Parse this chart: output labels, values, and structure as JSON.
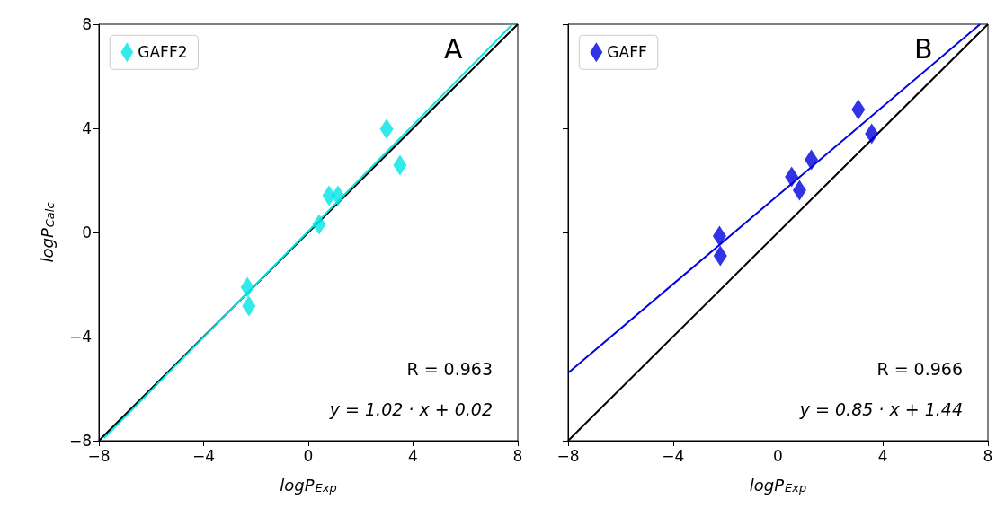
{
  "chart_data": [
    {
      "type": "scatter",
      "xlabel": "logP$_{Exp}$",
      "ylabel": "logP$_{Calc}$",
      "xlim": [
        -8,
        8
      ],
      "ylim": [
        -8,
        8
      ],
      "xticks": [
        -8,
        -4,
        0,
        4,
        8
      ],
      "yticks": [
        -8,
        -4,
        0,
        4,
        8
      ],
      "grid": false,
      "legend": "top left",
      "marker": "diamond",
      "annotations": [
        "A",
        "R = 0.963",
        "y = 1.02 · x + 0.02"
      ],
      "series": [
        {
          "type": "line",
          "color": "#000000",
          "x": [
            -8,
            8
          ],
          "values": [
            -8,
            8
          ],
          "marker": "none"
        },
        {
          "type": "line",
          "color": "#00e5e5",
          "x": [
            -7.8,
            7.8
          ],
          "values": [
            -7.9,
            8.0
          ],
          "marker": "none"
        },
        {
          "name": "GAFF2",
          "color": "#00e5e5",
          "x": [
            -2.33,
            -2.27,
            0.41,
            0.79,
            1.13,
            2.99,
            3.5
          ],
          "values": [
            -2.1,
            -2.83,
            0.31,
            1.41,
            1.41,
            3.97,
            2.59
          ]
        }
      ]
    },
    {
      "type": "scatter",
      "xlabel": "logP$_{Exp}$",
      "xlim": [
        -8,
        8
      ],
      "ylim": [
        -8,
        8
      ],
      "xticks": [
        -8,
        -4,
        0,
        4,
        8
      ],
      "yticks": [
        -8,
        -4,
        0,
        4,
        8
      ],
      "tick_labels": "x",
      "grid": false,
      "legend": "top left",
      "marker": "diamond",
      "annotations": [
        "B",
        "R = 0.966",
        "y = 0.85 · x + 1.44"
      ],
      "series": [
        {
          "type": "line",
          "color": "#000000",
          "x": [
            -8,
            8
          ],
          "values": [
            -8,
            8
          ],
          "marker": "none"
        },
        {
          "type": "line",
          "color": "#0000e0",
          "x": [
            -8,
            7.7
          ],
          "values": [
            -5.4,
            8.0
          ],
          "marker": "none"
        },
        {
          "name": "GAFF",
          "color": "#0000e0",
          "x": [
            -2.23,
            -2.2,
            0.52,
            0.82,
            1.27,
            3.06,
            3.57
          ],
          "values": [
            -0.14,
            -0.9,
            2.14,
            1.62,
            2.79,
            4.72,
            3.79
          ]
        }
      ]
    }
  ]
}
